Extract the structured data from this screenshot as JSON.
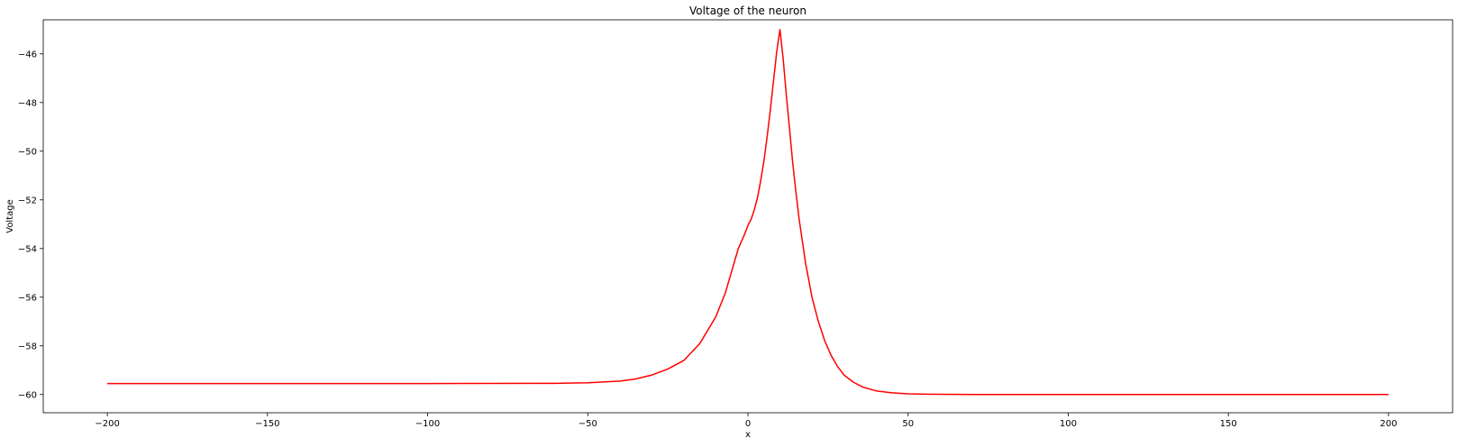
{
  "chart_data": {
    "type": "line",
    "title": "Voltage of the neuron",
    "xlabel": "x",
    "ylabel": "Voltage",
    "xlim": [
      -220,
      220
    ],
    "ylim": [
      -60.75,
      -44.6
    ],
    "xticks": [
      -200,
      -150,
      -100,
      -50,
      0,
      50,
      100,
      150,
      200
    ],
    "xtick_labels": [
      "−200",
      "−150",
      "−100",
      "−50",
      "0",
      "50",
      "100",
      "150",
      "200"
    ],
    "yticks": [
      -60,
      -58,
      -56,
      -54,
      -52,
      -50,
      -48,
      -46
    ],
    "ytick_labels": [
      "−60",
      "−58",
      "−56",
      "−54",
      "−52",
      "−50",
      "−48",
      "−46"
    ],
    "grid": false,
    "series": [
      {
        "color": "#ff0000",
        "x": [
          -200,
          -150,
          -100,
          -60,
          -50,
          -40,
          -35,
          -30,
          -25,
          -20,
          -15,
          -10,
          -7,
          -5,
          -3,
          -1,
          0,
          1,
          2,
          3,
          4,
          5,
          6,
          7,
          8,
          9,
          10,
          11,
          12,
          13,
          14,
          15,
          16,
          18,
          20,
          22,
          24,
          26,
          28,
          30,
          33,
          36,
          40,
          45,
          50,
          55,
          60,
          70,
          80,
          100,
          150,
          200
        ],
        "y": [
          -59.55,
          -59.55,
          -59.55,
          -59.54,
          -59.52,
          -59.45,
          -59.36,
          -59.2,
          -58.95,
          -58.6,
          -57.9,
          -56.8,
          -55.8,
          -54.9,
          -54.0,
          -53.4,
          -53.05,
          -52.8,
          -52.4,
          -51.9,
          -51.2,
          -50.4,
          -49.4,
          -48.3,
          -47.1,
          -45.9,
          -45.0,
          -46.2,
          -47.7,
          -49.1,
          -50.5,
          -51.7,
          -52.8,
          -54.6,
          -56.0,
          -57.0,
          -57.8,
          -58.4,
          -58.85,
          -59.2,
          -59.5,
          -59.7,
          -59.85,
          -59.93,
          -59.97,
          -59.985,
          -59.99,
          -60.0,
          -60.0,
          -60.0,
          -60.0,
          -60.0
        ]
      }
    ]
  }
}
